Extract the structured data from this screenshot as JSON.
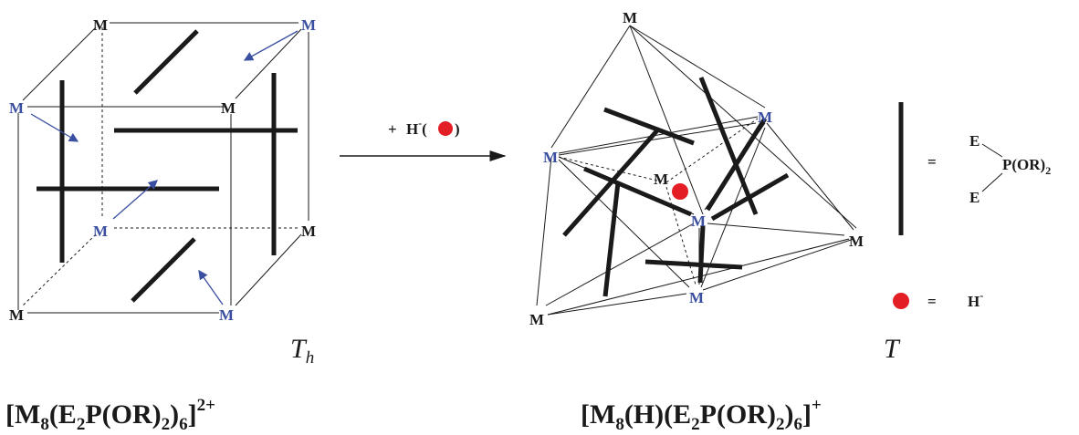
{
  "cube": {
    "metal_label": "M",
    "symmetry": "T",
    "symmetry_sub": "h",
    "formula": {
      "part1": "[M",
      "sub1": "8",
      "part2": "(E",
      "sub2": "2",
      "part3": "P(OR)",
      "sub3": "2",
      "part4": ")",
      "sub4": "6",
      "part5": "]",
      "charge": "2+"
    }
  },
  "reaction": {
    "plus": "+",
    "hydride": "H",
    "hydride_charge": "-",
    "paren_open": "(",
    "paren_close": ")"
  },
  "cluster": {
    "metal_label": "M",
    "symmetry": "T",
    "formula": {
      "part1": "[M",
      "sub1": "8",
      "part2": "(H)(E",
      "sub2": "2",
      "part3": "P(OR)",
      "sub3": "2",
      "part4": ")",
      "sub4": "6",
      "part5": "]",
      "charge": "+"
    }
  },
  "legend": {
    "equals": "=",
    "E_top": "E",
    "E_bottom": "E",
    "phosphorus": "P(OR)",
    "phosphorus_sub": "2",
    "hydride": "H",
    "hydride_charge": "-"
  },
  "colors": {
    "black": "#1a1a1a",
    "blue_metal": "#3a4fa0",
    "hydride_red": "#e31e24"
  }
}
